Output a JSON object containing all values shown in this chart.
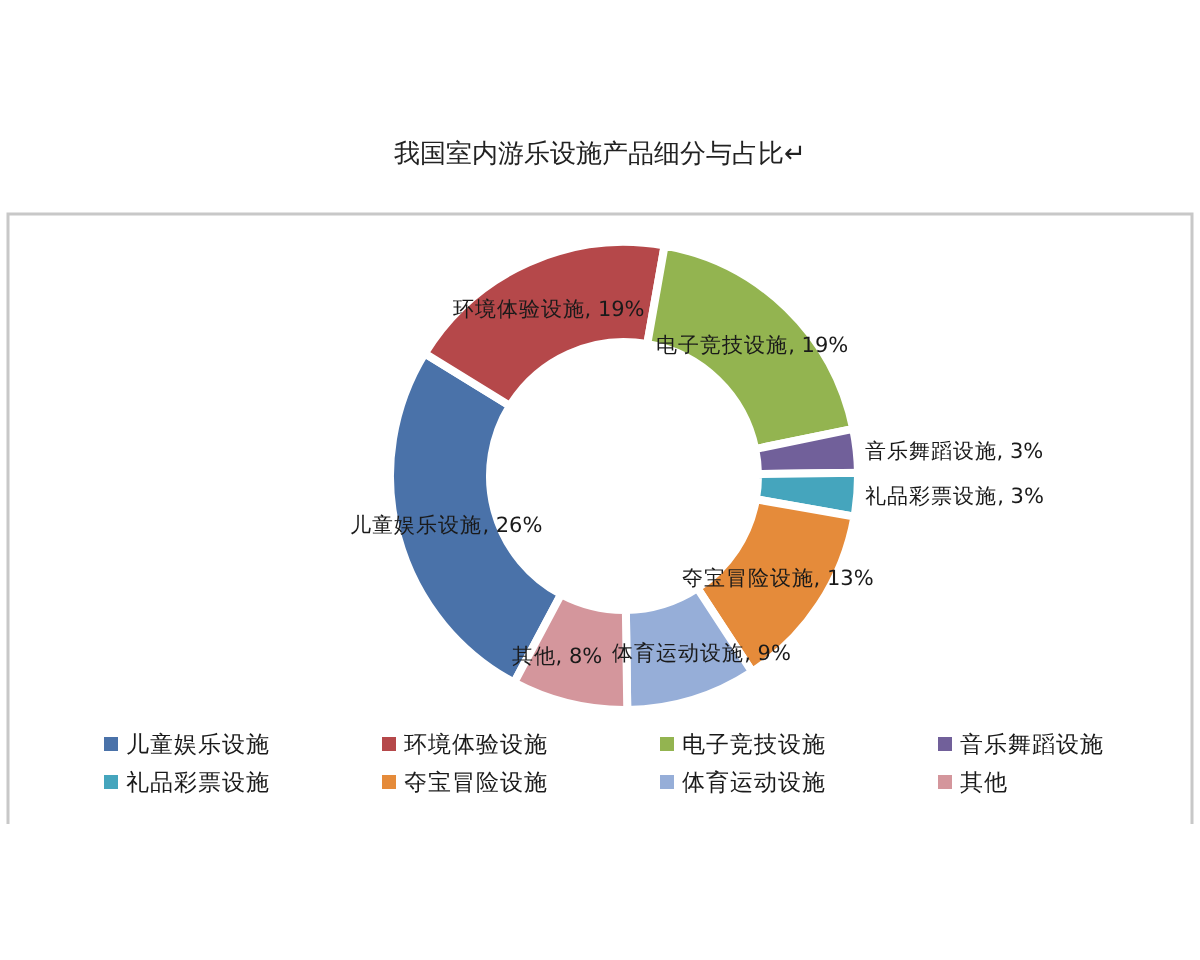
{
  "chart_data": {
    "type": "donut",
    "title": "我国室内游乐设施产品细分与占比↵",
    "categories": [
      "儿童娱乐设施",
      "环境体验设施",
      "电子竞技设施",
      "音乐舞蹈设施",
      "礼品彩票设施",
      "夺宝冒险设施",
      "体育运动设施",
      "其他"
    ],
    "values": [
      26,
      19,
      19,
      3,
      3,
      13,
      9,
      8
    ],
    "colors": [
      "#4a72a9",
      "#b5484a",
      "#93b450",
      "#71609a",
      "#45a5bd",
      "#e58b3a",
      "#96aed8",
      "#d4969c"
    ],
    "value_labels": [
      "儿童娱乐设施, 26%",
      "环境体验设施, 19%",
      "电子竞技设施, 19%",
      "音乐舞蹈设施, 3%",
      "礼品彩票设施, 3%",
      "夺宝冒险设施, 13%",
      "体育运动设施, 9%",
      "其他, 8%"
    ],
    "legend": "bottom"
  }
}
